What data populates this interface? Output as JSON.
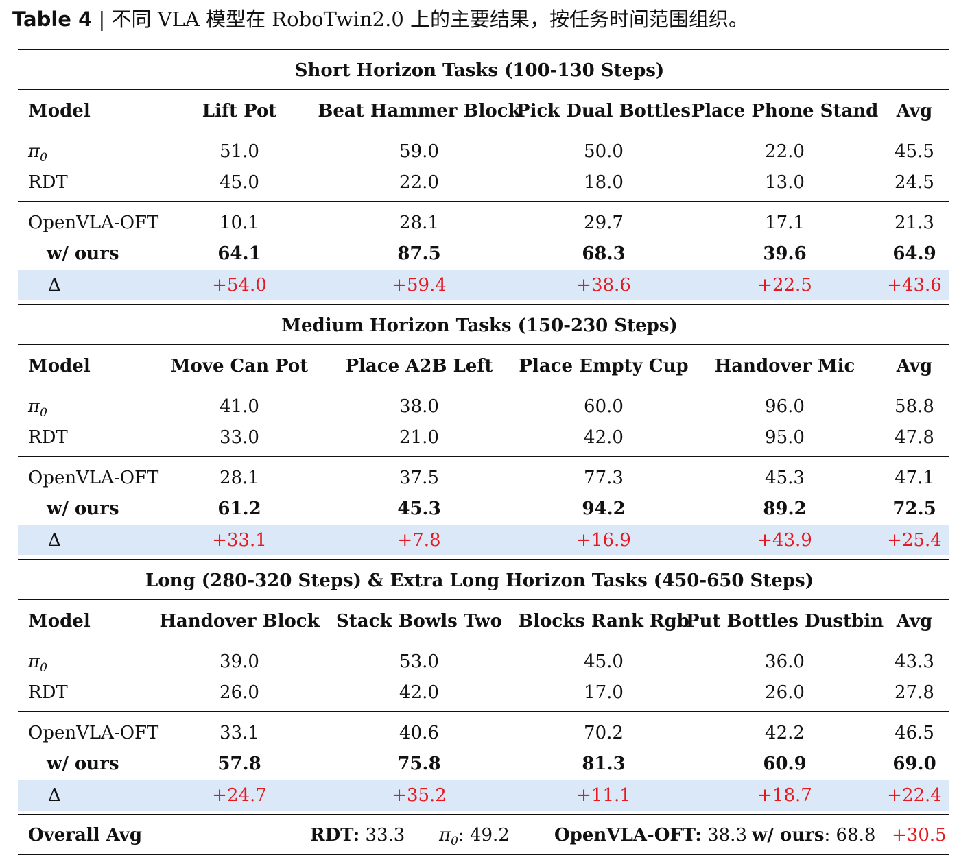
{
  "caption": {
    "label": "Table 4",
    "sep": " | ",
    "text": "不同 VLA 模型在 RoboTwin2.0 上的主要结果，按任务时间范围组织。"
  },
  "sections": [
    {
      "title": "Short Horizon Tasks (100-130 Steps)",
      "header": [
        "Model",
        "Lift Pot",
        "Beat Hammer Block",
        "Pick Dual Bottles",
        "Place Phone Stand",
        "Avg"
      ],
      "rows": [
        [
          "π0",
          "51.0",
          "59.0",
          "50.0",
          "22.0",
          "45.5"
        ],
        [
          "RDT",
          "45.0",
          "22.0",
          "18.0",
          "13.0",
          "24.5"
        ],
        [
          "OpenVLA-OFT",
          "10.1",
          "28.1",
          "29.7",
          "17.1",
          "21.3"
        ],
        [
          "w/ ours",
          "64.1",
          "87.5",
          "68.3",
          "39.6",
          "64.9"
        ],
        [
          "Δ",
          "+54.0",
          "+59.4",
          "+38.6",
          "+22.5",
          "+43.6"
        ]
      ]
    },
    {
      "title": "Medium Horizon Tasks (150-230 Steps)",
      "header": [
        "Model",
        "Move Can Pot",
        "Place A2B Left",
        "Place Empty Cup",
        "Handover Mic",
        "Avg"
      ],
      "rows": [
        [
          "π0",
          "41.0",
          "38.0",
          "60.0",
          "96.0",
          "58.8"
        ],
        [
          "RDT",
          "33.0",
          "21.0",
          "42.0",
          "95.0",
          "47.8"
        ],
        [
          "OpenVLA-OFT",
          "28.1",
          "37.5",
          "77.3",
          "45.3",
          "47.1"
        ],
        [
          "w/ ours",
          "61.2",
          "45.3",
          "94.2",
          "89.2",
          "72.5"
        ],
        [
          "Δ",
          "+33.1",
          "+7.8",
          "+16.9",
          "+43.9",
          "+25.4"
        ]
      ]
    },
    {
      "title": "Long (280-320 Steps) & Extra Long Horizon Tasks (450-650 Steps)",
      "header": [
        "Model",
        "Handover Block",
        "Stack Bowls Two",
        "Blocks Rank Rgb",
        "Put Bottles Dustbin",
        "Avg"
      ],
      "rows": [
        [
          "π0",
          "39.0",
          "53.0",
          "45.0",
          "36.0",
          "43.3"
        ],
        [
          "RDT",
          "26.0",
          "42.0",
          "17.0",
          "26.0",
          "27.8"
        ],
        [
          "OpenVLA-OFT",
          "33.1",
          "40.6",
          "70.2",
          "42.2",
          "46.5"
        ],
        [
          "w/ ours",
          "57.8",
          "75.8",
          "81.3",
          "60.9",
          "69.0"
        ],
        [
          "Δ",
          "+24.7",
          "+35.2",
          "+11.1",
          "+18.7",
          "+22.4"
        ]
      ]
    }
  ],
  "overall": {
    "label": "Overall Avg",
    "rdt_label": "RDT:",
    "rdt_value": "33.3",
    "pi_label": "π0",
    "pi_value": ": 49.2",
    "oft_label": "OpenVLA-OFT:",
    "oft_value": "38.3",
    "ours_label": "w/ ours",
    "ours_value": ": 68.8",
    "delta": "+30.5"
  },
  "colors": {
    "delta_text": "#e5191f",
    "delta_band": "#dbe8f7"
  }
}
